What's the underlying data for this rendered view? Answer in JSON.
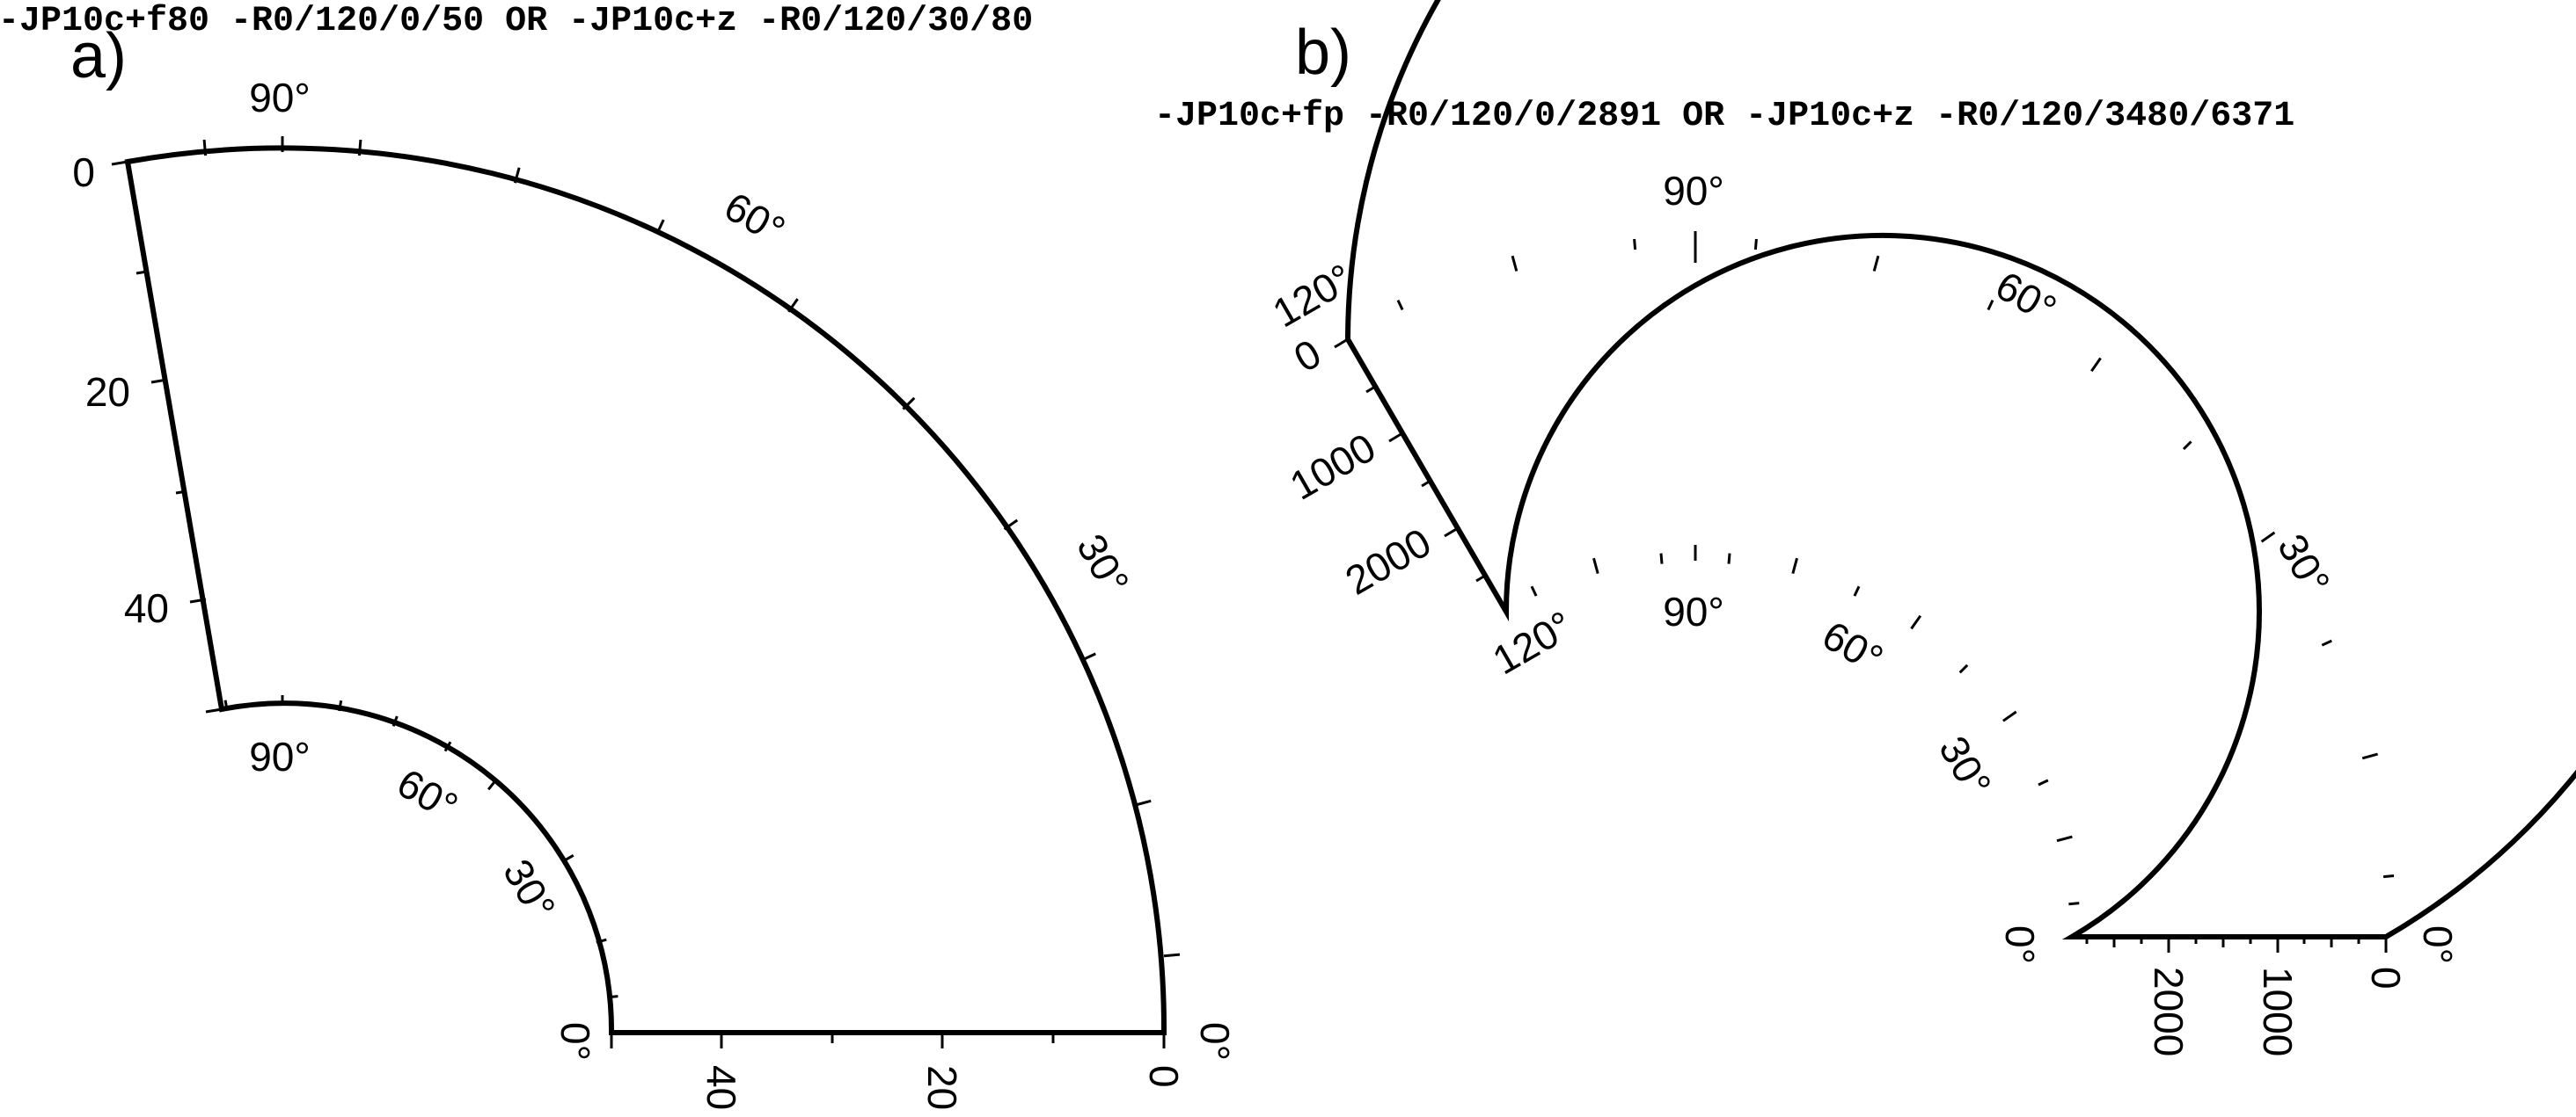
{
  "panels": [
    {
      "id": "a",
      "label": "a)",
      "command": "-JP10c+f80  -R0/120/0/50 OR -JP10c+z  -R0/120/30/80",
      "outer_angle_labels": [
        "90°",
        "60°",
        "30°",
        "0°"
      ],
      "inner_angle_labels": [
        "90°",
        "60°",
        "30°",
        "0°"
      ],
      "depth_left_labels": [
        "0",
        "20",
        "40"
      ],
      "depth_bottom_labels": [
        "0",
        "20",
        "40"
      ]
    },
    {
      "id": "b",
      "label": "b)",
      "command": "-JP10c+fp  -R0/120/0/2891 OR -JP10c+z  -R0/120/3480/6371",
      "outer_angle_labels": [
        "120°",
        "90°",
        "60°",
        "30°",
        "0°"
      ],
      "inner_angle_labels": [
        "120°",
        "90°",
        "60°",
        "30°",
        "0°"
      ],
      "depth_left_labels": [
        "0",
        "1000",
        "2000"
      ],
      "depth_bottom_labels": [
        "0",
        "1000",
        "2000"
      ]
    }
  ]
}
